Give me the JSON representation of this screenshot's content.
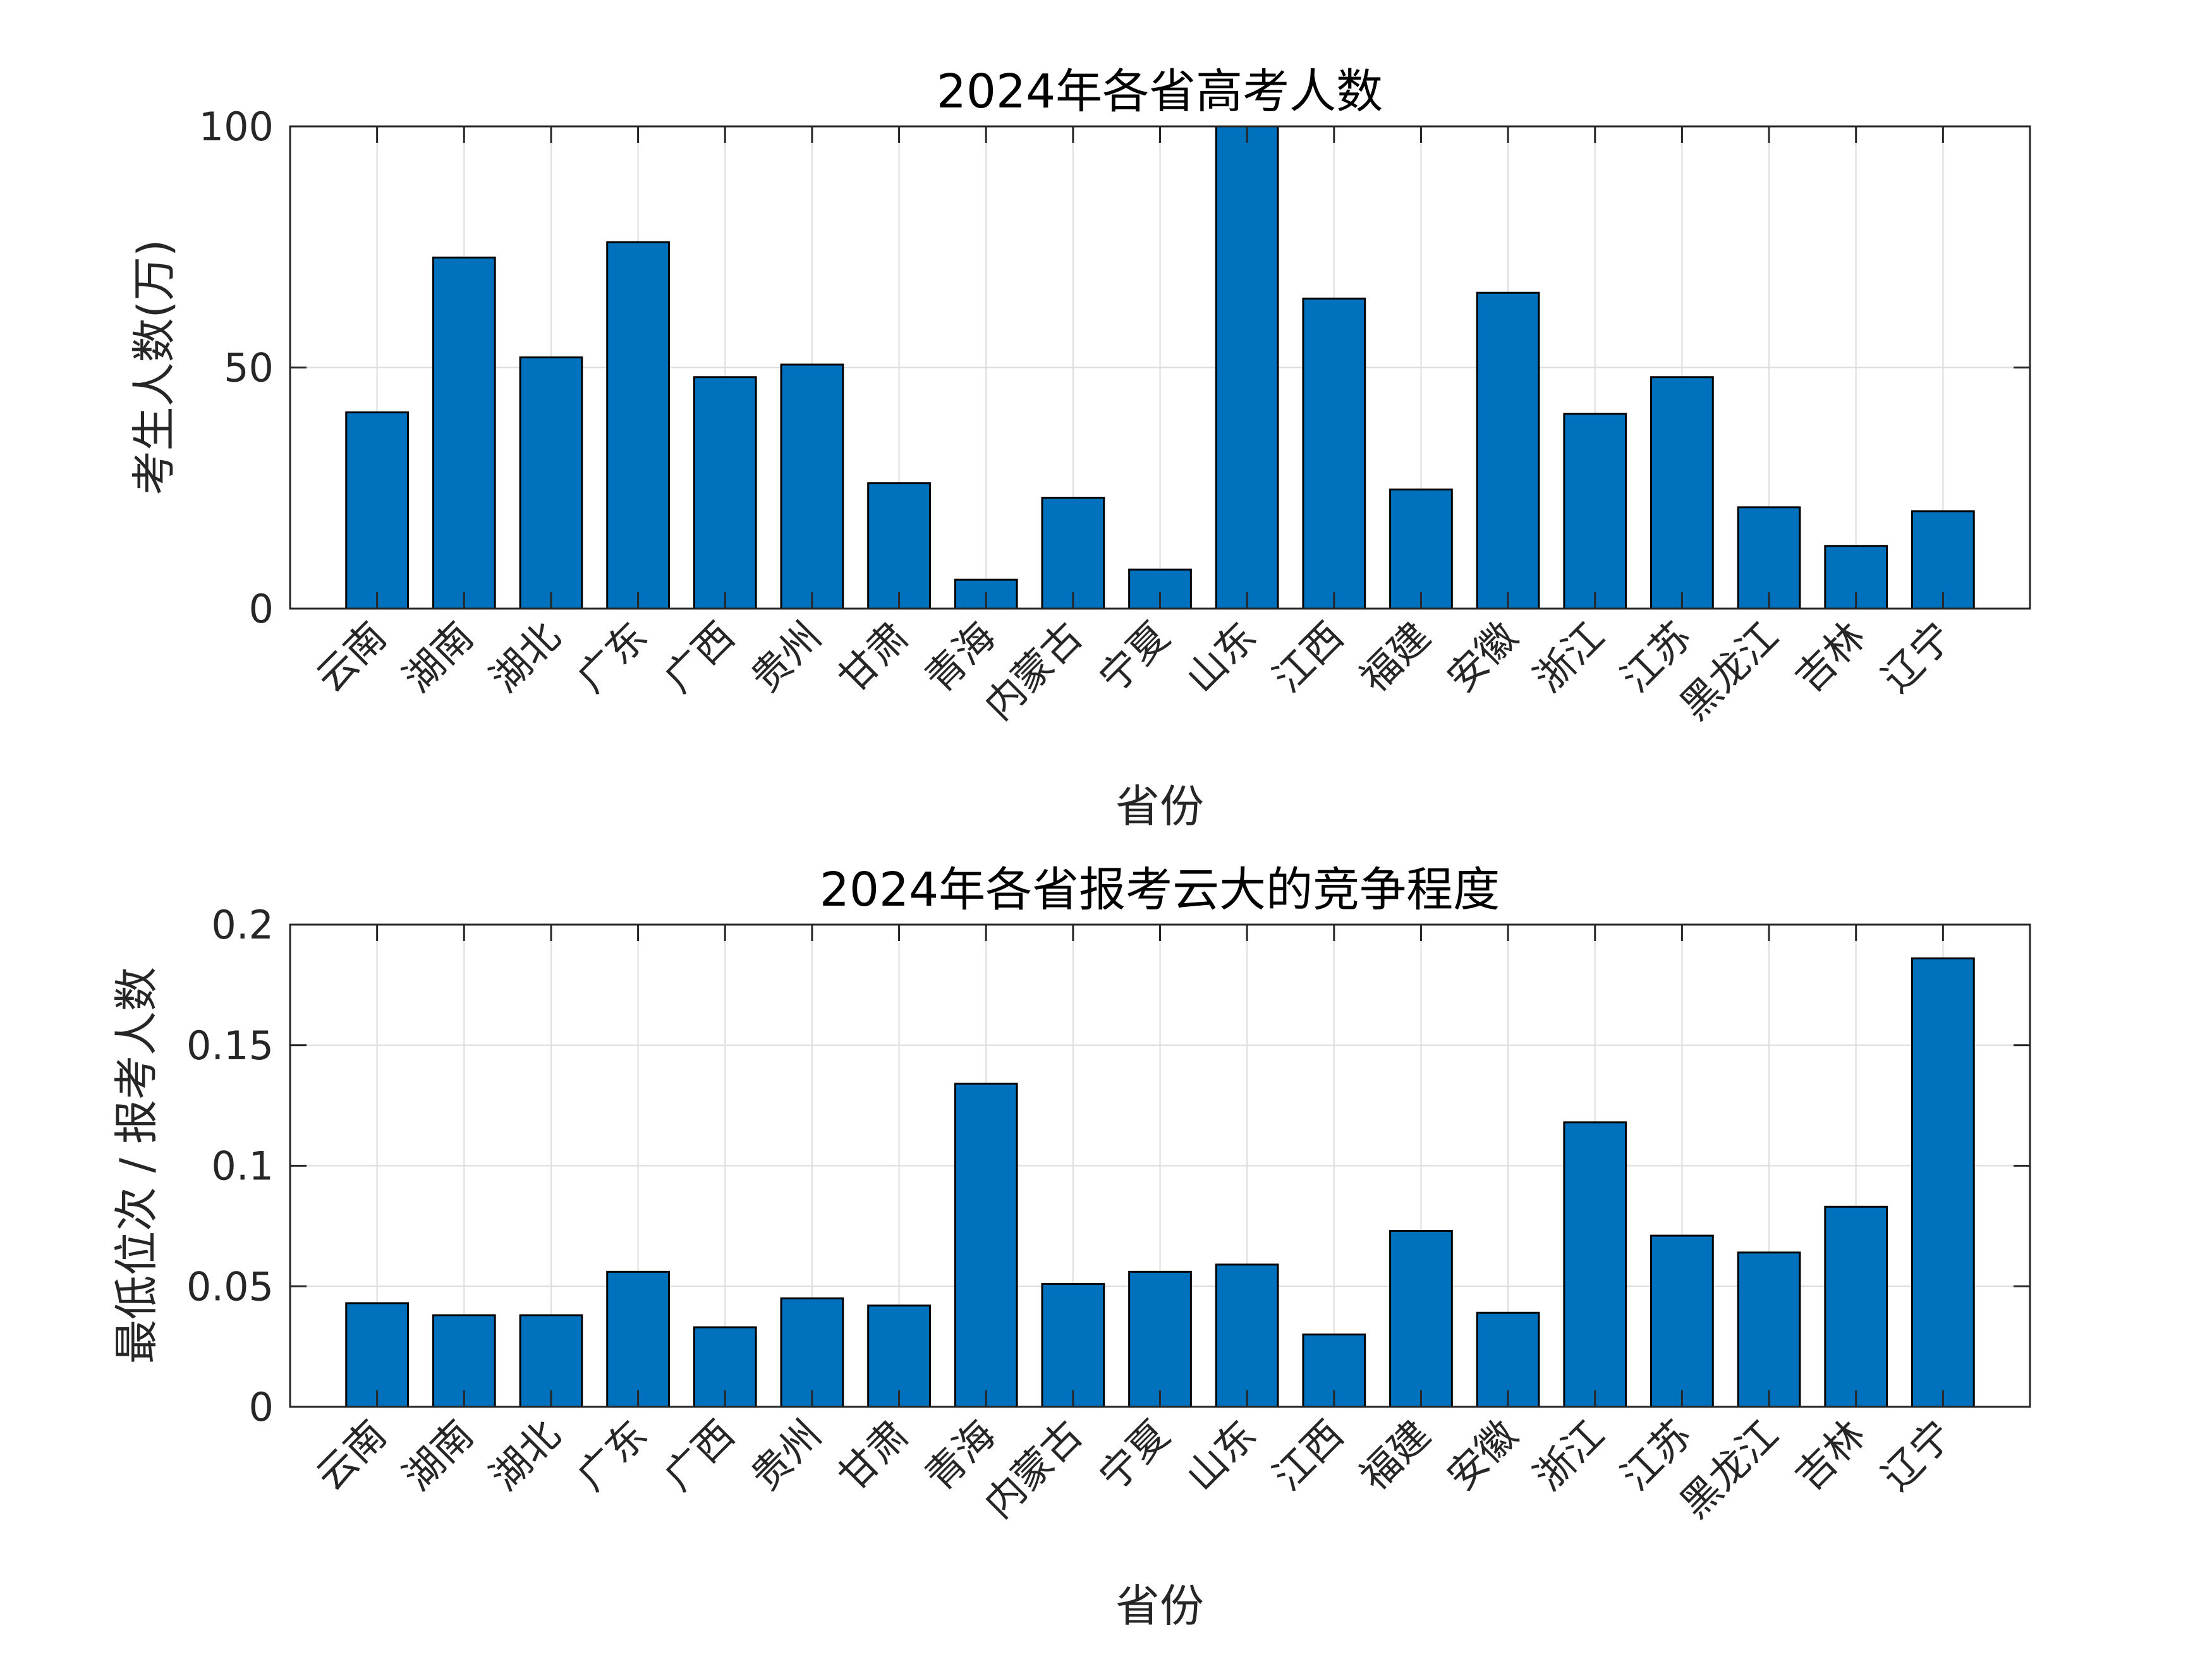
{
  "chart_data": [
    {
      "type": "bar",
      "title": "2024年各省高考人数",
      "xlabel": "省份",
      "ylabel": "考生人数(万)",
      "ylim": [
        0,
        100
      ],
      "yticks": [
        0,
        50,
        100
      ],
      "grid": true,
      "color": "#0072BD",
      "categories": [
        "云南",
        "湖南",
        "湖北",
        "广东",
        "广西",
        "贵州",
        "甘肃",
        "青海",
        "内蒙古",
        "宁夏",
        "山东",
        "江西",
        "福建",
        "安徽",
        "浙江",
        "江苏",
        "黑龙江",
        "吉林",
        "辽宁"
      ],
      "values": [
        40.7,
        72.8,
        52.1,
        76.0,
        48.0,
        50.6,
        26.0,
        6.0,
        23.0,
        8.1,
        100,
        64.3,
        24.7,
        65.5,
        40.4,
        48.0,
        21.0,
        13.0,
        20.2
      ]
    },
    {
      "type": "bar",
      "title": "2024年各省报考云大的竞争程度",
      "xlabel": "省份",
      "ylabel": "最低位次 / 报考人数",
      "ylim": [
        0,
        0.2
      ],
      "yticks": [
        0,
        0.05,
        0.1,
        0.15,
        0.2
      ],
      "grid": true,
      "color": "#0072BD",
      "categories": [
        "云南",
        "湖南",
        "湖北",
        "广东",
        "广西",
        "贵州",
        "甘肃",
        "青海",
        "内蒙古",
        "宁夏",
        "山东",
        "江西",
        "福建",
        "安徽",
        "浙江",
        "江苏",
        "黑龙江",
        "吉林",
        "辽宁"
      ],
      "values": [
        0.043,
        0.038,
        0.038,
        0.056,
        0.033,
        0.045,
        0.042,
        0.134,
        0.051,
        0.056,
        0.059,
        0.03,
        0.073,
        0.039,
        0.118,
        0.071,
        0.064,
        0.083,
        0.186
      ]
    }
  ]
}
